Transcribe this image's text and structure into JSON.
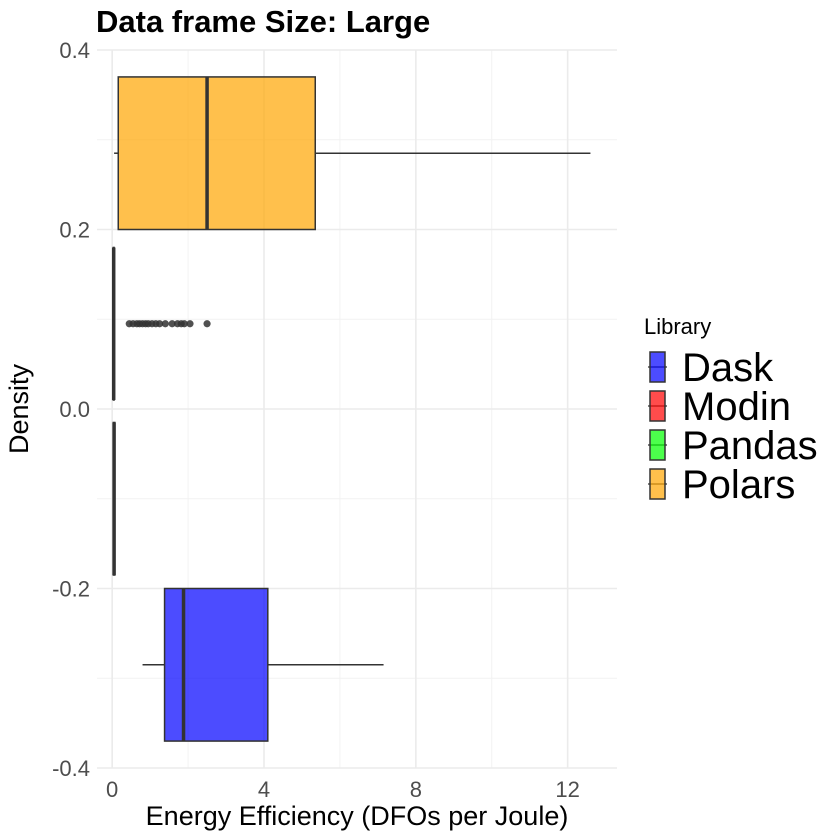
{
  "chart_data": {
    "type": "boxplot",
    "title": "Data frame Size: Large",
    "xlabel": "Energy Efficiency (DFOs per Joule)",
    "ylabel": "Density",
    "xlim": [
      -0.4,
      13.3
    ],
    "ylim": [
      -0.4,
      0.4
    ],
    "x_ticks": [
      "0",
      "4",
      "8",
      "12"
    ],
    "y_ticks": [
      "-0.4",
      "-0.2",
      "0.0",
      "0.2",
      "0.4"
    ],
    "grid": true,
    "legend": {
      "title": "Library",
      "position": "right",
      "entries": [
        {
          "name": "Dask",
          "color": "#0000ff"
        },
        {
          "name": "Modin",
          "color": "#ff0000"
        },
        {
          "name": "Pandas",
          "color": "#00ff00"
        },
        {
          "name": "Polars",
          "color": "#ffa500"
        }
      ]
    },
    "series": [
      {
        "name": "Dask",
        "y_center": -0.285,
        "y_range": [
          -0.37,
          -0.2
        ],
        "whisker_low": 0.8,
        "q1": 1.38,
        "median": 1.88,
        "q3": 4.1,
        "whisker_high": 7.15,
        "outliers": []
      },
      {
        "name": "Modin",
        "y_center": -0.1,
        "y_range": [
          -0.185,
          -0.015
        ],
        "whisker_low": 0.02,
        "q1": 0.03,
        "median": 0.05,
        "q3": 0.07,
        "whisker_high": 0.08,
        "outliers": []
      },
      {
        "name": "Pandas",
        "y_center": 0.095,
        "y_range": [
          0.01,
          0.18
        ],
        "whisker_low": 0.02,
        "q1": 0.03,
        "median": 0.04,
        "q3": 0.05,
        "whisker_high": 0.07,
        "outliers": [
          0.45,
          0.55,
          0.65,
          0.72,
          0.8,
          0.88,
          0.95,
          1.05,
          1.15,
          1.25,
          1.4,
          1.58,
          1.72,
          1.82,
          1.9,
          2.05,
          2.5
        ]
      },
      {
        "name": "Polars",
        "y_center": 0.285,
        "y_range": [
          0.2,
          0.37
        ],
        "whisker_low": 0.05,
        "q1": 0.16,
        "median": 2.5,
        "q3": 5.35,
        "whisker_high": 12.6,
        "outliers": []
      }
    ]
  }
}
